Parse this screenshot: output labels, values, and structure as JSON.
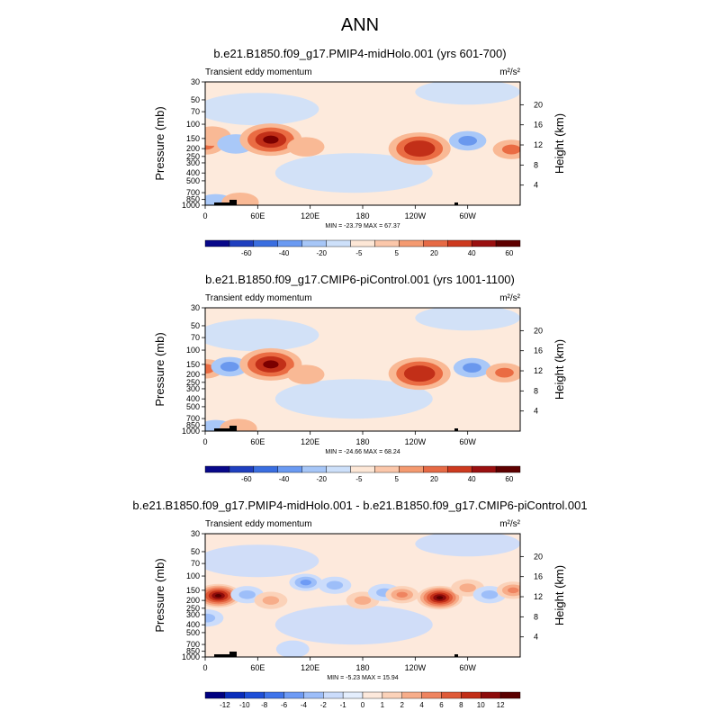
{
  "figure": {
    "title": "ANN"
  },
  "chart_data": [
    {
      "type": "heatmap",
      "title": "b.e21.B1850.f09_g17.PMIP4-midHolo.001 (yrs 601-700)",
      "left_label": "Transient eddy momentum",
      "units": "m²/s²",
      "ylabel": "Pressure (mb)",
      "ylabel_right": "Height (km)",
      "y_ticks": [
        "30",
        "50",
        "70",
        "100",
        "150",
        "200",
        "250",
        "300",
        "400",
        "500",
        "700",
        "850",
        "1000"
      ],
      "height_ticks": [
        "20",
        "16",
        "12",
        "8",
        "4"
      ],
      "x_ticks": [
        "0",
        "60E",
        "120E",
        "180",
        "120W",
        "60W"
      ],
      "stats": "MIN = -23.79  MAX =  67.37",
      "colorbar_labels": [
        "-60",
        "-40",
        "-20",
        "-5",
        "5",
        "20",
        "40",
        "60"
      ],
      "features": [
        {
          "lon": 0,
          "p": 180,
          "v": 25
        },
        {
          "lon": 8,
          "p": 140,
          "v": 15
        },
        {
          "lon": 35,
          "p": 175,
          "v": -12
        },
        {
          "lon": 75,
          "p": 155,
          "v": 67.37
        },
        {
          "lon": 115,
          "p": 190,
          "v": 6
        },
        {
          "lon": 245,
          "p": 200,
          "v": 48
        },
        {
          "lon": 300,
          "p": 160,
          "v": -23.79
        },
        {
          "lon": 350,
          "p": 205,
          "v": 35
        },
        {
          "lon": 165,
          "p": 80,
          "v": -3
        },
        {
          "lon": 60,
          "p": 450,
          "v": -3
        },
        {
          "lon": 12,
          "p": 960,
          "v": -5
        },
        {
          "lon": 40,
          "p": 920,
          "v": 18
        }
      ]
    },
    {
      "type": "heatmap",
      "title": "b.e21.B1850.f09_g17.CMIP6-piControl.001 (yrs 1001-1100)",
      "left_label": "Transient eddy momentum",
      "units": "m²/s²",
      "ylabel": "Pressure (mb)",
      "ylabel_right": "Height (km)",
      "y_ticks": [
        "30",
        "50",
        "70",
        "100",
        "150",
        "200",
        "250",
        "300",
        "400",
        "500",
        "700",
        "850",
        "1000"
      ],
      "height_ticks": [
        "20",
        "16",
        "12",
        "8",
        "4"
      ],
      "x_ticks": [
        "0",
        "60E",
        "120E",
        "180",
        "120W",
        "60W"
      ],
      "stats": "MIN = -24.66  MAX =  68.24",
      "colorbar_labels": [
        "-60",
        "-40",
        "-20",
        "-5",
        "5",
        "20",
        "40",
        "60"
      ],
      "features": [
        {
          "lon": 0,
          "p": 170,
          "v": 20
        },
        {
          "lon": 28,
          "p": 160,
          "v": -22
        },
        {
          "lon": 75,
          "p": 150,
          "v": 68.24
        },
        {
          "lon": 115,
          "p": 200,
          "v": 5
        },
        {
          "lon": 245,
          "p": 195,
          "v": 45
        },
        {
          "lon": 305,
          "p": 165,
          "v": -24.66
        },
        {
          "lon": 342,
          "p": 190,
          "v": 30
        },
        {
          "lon": 160,
          "p": 70,
          "v": -3
        },
        {
          "lon": 12,
          "p": 960,
          "v": -5
        },
        {
          "lon": 38,
          "p": 930,
          "v": 15
        }
      ]
    },
    {
      "type": "heatmap",
      "title": "b.e21.B1850.f09_g17.PMIP4-midHolo.001 - b.e21.B1850.f09_g17.CMIP6-piControl.001",
      "left_label": "Transient eddy momentum",
      "units": "m²/s²",
      "ylabel": "Pressure (mb)",
      "ylabel_right": "Height (km)",
      "y_ticks": [
        "30",
        "50",
        "70",
        "100",
        "150",
        "200",
        "250",
        "300",
        "400",
        "500",
        "700",
        "850",
        "1000"
      ],
      "height_ticks": [
        "20",
        "16",
        "12",
        "8",
        "4"
      ],
      "x_ticks": [
        "0",
        "60E",
        "120E",
        "180",
        "120W",
        "60W"
      ],
      "stats": "MIN = -5.23  MAX =  15.94",
      "colorbar_labels": [
        "-12",
        "-10",
        "-8",
        "-6",
        "-4",
        "-2",
        "-1",
        "0",
        "1",
        "2",
        "4",
        "6",
        "8",
        "10",
        "12"
      ],
      "features": [
        {
          "lon": 15,
          "p": 175,
          "v": 14
        },
        {
          "lon": 2,
          "p": 330,
          "v": -4
        },
        {
          "lon": 48,
          "p": 170,
          "v": -4
        },
        {
          "lon": 75,
          "p": 200,
          "v": 3
        },
        {
          "lon": 115,
          "p": 120,
          "v": -5.23
        },
        {
          "lon": 148,
          "p": 130,
          "v": -3
        },
        {
          "lon": 180,
          "p": 200,
          "v": 2
        },
        {
          "lon": 205,
          "p": 160,
          "v": -3
        },
        {
          "lon": 225,
          "p": 170,
          "v": 5
        },
        {
          "lon": 268,
          "p": 185,
          "v": 15.94
        },
        {
          "lon": 300,
          "p": 140,
          "v": 4
        },
        {
          "lon": 325,
          "p": 170,
          "v": -2
        },
        {
          "lon": 352,
          "p": 150,
          "v": 7
        },
        {
          "lon": 100,
          "p": 800,
          "v": -1
        }
      ]
    }
  ]
}
